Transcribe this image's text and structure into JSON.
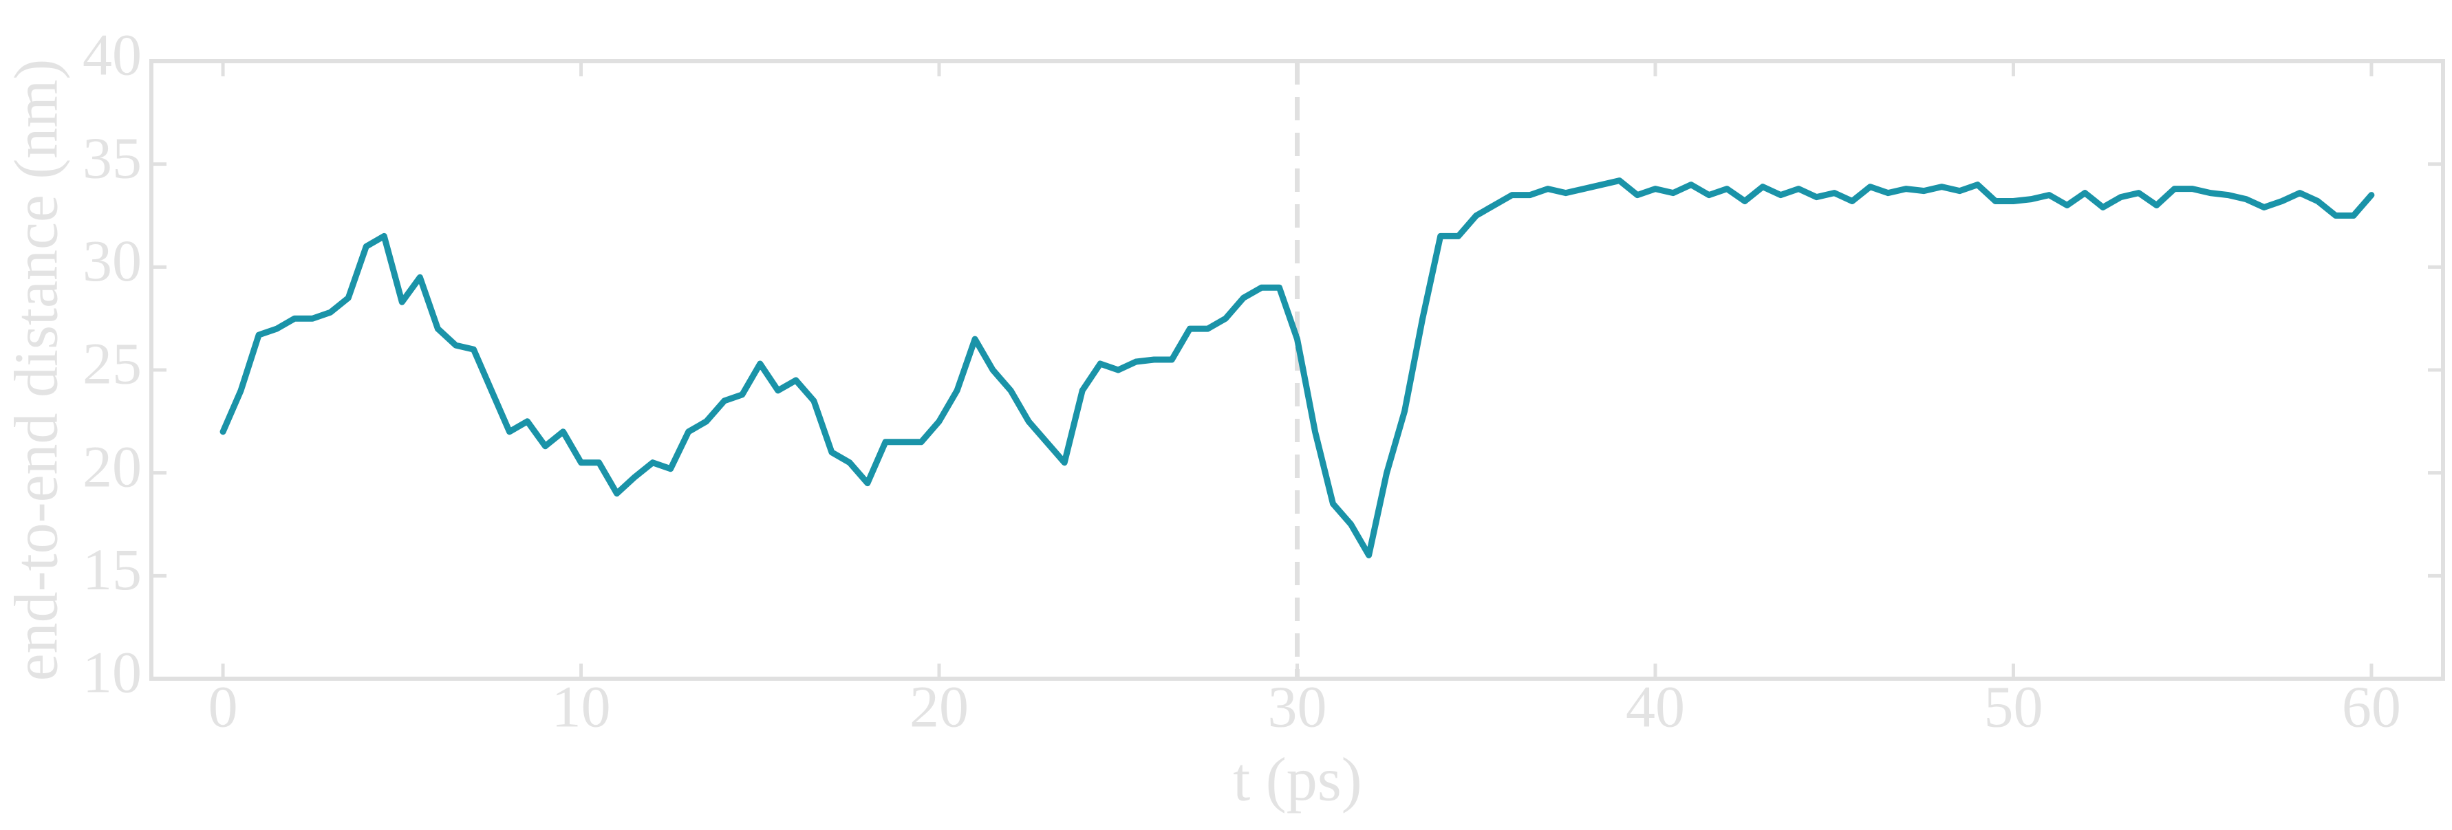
{
  "chart_data": {
    "type": "line",
    "xlabel": "t (ps)",
    "ylabel": "end-to-end distance (nm)",
    "xlim": [
      -2,
      62
    ],
    "ylim": [
      10,
      40
    ],
    "xticks": [
      0,
      10,
      20,
      30,
      40,
      50,
      60
    ],
    "yticks": [
      10,
      15,
      20,
      25,
      30,
      35,
      40
    ],
    "vline": 30,
    "x": [
      0,
      0.5,
      1,
      1.5,
      2,
      2.5,
      3,
      3.5,
      4,
      4.5,
      5,
      5.5,
      6,
      6.5,
      7,
      7.5,
      8,
      8.5,
      9,
      9.5,
      10,
      10.5,
      11,
      11.5,
      12,
      12.5,
      13,
      13.5,
      14,
      14.5,
      15,
      15.5,
      16,
      16.5,
      17,
      17.5,
      18,
      18.5,
      19,
      19.5,
      20,
      20.5,
      21,
      21.5,
      22,
      22.5,
      23,
      23.5,
      24,
      24.5,
      25,
      25.5,
      26,
      26.5,
      27,
      27.5,
      28,
      28.5,
      29,
      29.5,
      30,
      30.5,
      31,
      31.5,
      32,
      32.5,
      33,
      33.5,
      34,
      34.5,
      35,
      35.5,
      36,
      36.5,
      37,
      37.5,
      38,
      38.5,
      39,
      39.5,
      40,
      40.5,
      41,
      41.5,
      42,
      42.5,
      43,
      43.5,
      44,
      44.5,
      45,
      45.5,
      46,
      46.5,
      47,
      47.5,
      48,
      48.5,
      49,
      49.5,
      50,
      50.5,
      51,
      51.5,
      52,
      52.5,
      53,
      53.5,
      54,
      54.5,
      55,
      55.5,
      56,
      56.5,
      57,
      57.5,
      58,
      58.5,
      59,
      59.5,
      60
    ],
    "series": [
      {
        "color": "#1a93a8",
        "values": [
          22,
          24,
          26.7,
          27,
          27.5,
          27.5,
          27.8,
          28.5,
          31,
          31.5,
          28.3,
          29.5,
          27,
          26.2,
          26,
          24,
          22,
          22.5,
          21.3,
          22,
          20.5,
          20.5,
          19,
          19.8,
          20.5,
          20.2,
          22,
          22.5,
          23.5,
          23.8,
          25.3,
          24,
          24.5,
          23.5,
          21,
          20.5,
          19.5,
          21.5,
          21.5,
          21.5,
          22.5,
          24,
          26.5,
          25,
          24,
          22.5,
          21.5,
          20.5,
          24,
          25.3,
          25,
          25.4,
          25.5,
          25.5,
          27,
          27,
          27.5,
          28.5,
          29,
          29,
          26.5,
          22,
          18.5,
          17.5,
          16,
          20,
          23,
          27.5,
          31.5,
          31.5,
          32.5,
          33,
          33.5,
          33.5,
          33.8,
          33.6,
          33.8,
          34,
          34.2,
          33.5,
          33.8,
          33.6,
          34,
          33.5,
          33.8,
          33.2,
          33.9,
          33.5,
          33.8,
          33.4,
          33.6,
          33.2,
          33.9,
          33.6,
          33.8,
          33.7,
          33.9,
          33.7,
          34,
          33.2,
          33.2,
          33.3,
          33.5,
          33,
          33.6,
          32.9,
          33.4,
          33.6,
          33,
          33.8,
          33.8,
          33.6,
          33.5,
          33.3,
          32.9,
          33.2,
          33.6,
          33.2,
          32.5,
          32.5,
          33.5
        ]
      }
    ]
  }
}
